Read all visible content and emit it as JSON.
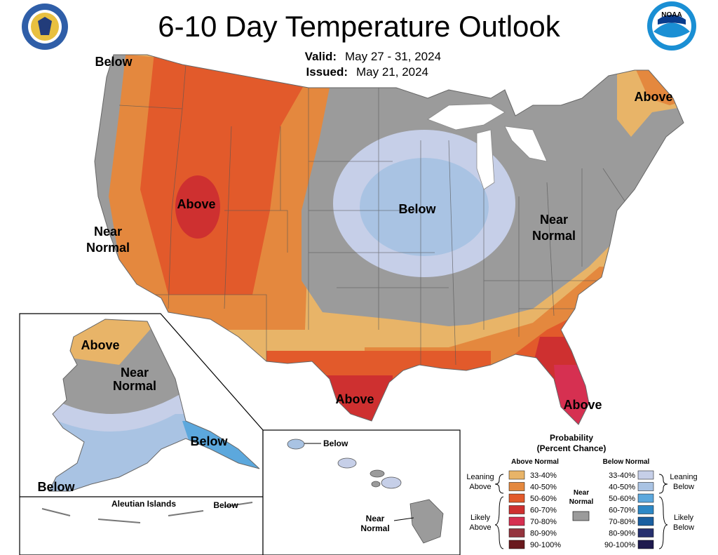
{
  "header": {
    "title": "6-10 Day Temperature Outlook",
    "valid_label": "Valid:",
    "valid_value": "May 27 - 31, 2024",
    "issued_label": "Issued:",
    "issued_value": "May 21, 2024",
    "noaa_logo_text": "NOAA"
  },
  "map_labels": {
    "conus_below_nw": "Below",
    "conus_above_ne": "Above",
    "conus_above_west": "Above",
    "conus_below_center": "Below",
    "conus_near_normal_west": [
      "Near",
      "Normal"
    ],
    "conus_near_normal_east": [
      "Near",
      "Normal"
    ],
    "conus_above_texas": "Above",
    "conus_above_florida": "Above",
    "alaska_above": "Above",
    "alaska_near_normal": [
      "Near",
      "Normal"
    ],
    "alaska_below_se": "Below",
    "alaska_below_sw": "Below",
    "aleutian_title": "Aleutian Islands",
    "aleutian_below": "Below",
    "hawaii_below": "Below",
    "hawaii_near_normal": [
      "Near",
      "Normal"
    ]
  },
  "legend": {
    "title_line1": "Probability",
    "title_line2": "(Percent Chance)",
    "above_header": "Above Normal",
    "below_header": "Below Normal",
    "near_normal": [
      "Near",
      "Normal"
    ],
    "leaning_above": [
      "Leaning",
      "Above"
    ],
    "likely_above": [
      "Likely",
      "Above"
    ],
    "leaning_below": [
      "Leaning",
      "Below"
    ],
    "likely_below": [
      "Likely",
      "Below"
    ],
    "above_items": [
      {
        "label": "33-40%",
        "color": "#E8B468"
      },
      {
        "label": "40-50%",
        "color": "#E4883E"
      },
      {
        "label": "50-60%",
        "color": "#E25A2B"
      },
      {
        "label": "60-70%",
        "color": "#CE3030"
      },
      {
        "label": "70-80%",
        "color": "#D63051"
      },
      {
        "label": "80-90%",
        "color": "#94343E"
      },
      {
        "label": "90-100%",
        "color": "#6A1A1E"
      }
    ],
    "below_items": [
      {
        "label": "33-40%",
        "color": "#C6CFE8"
      },
      {
        "label": "40-50%",
        "color": "#A9C3E3"
      },
      {
        "label": "50-60%",
        "color": "#5CA8DD"
      },
      {
        "label": "60-70%",
        "color": "#2D88C6"
      },
      {
        "label": "70-80%",
        "color": "#1A5FA0"
      },
      {
        "label": "80-90%",
        "color": "#26306E"
      },
      {
        "label": "90-100%",
        "color": "#1E1A4E"
      }
    ],
    "near_normal_color": "#9B9B9B"
  },
  "colors": {
    "gray": "#9B9B9B",
    "land_border": "#555555"
  }
}
